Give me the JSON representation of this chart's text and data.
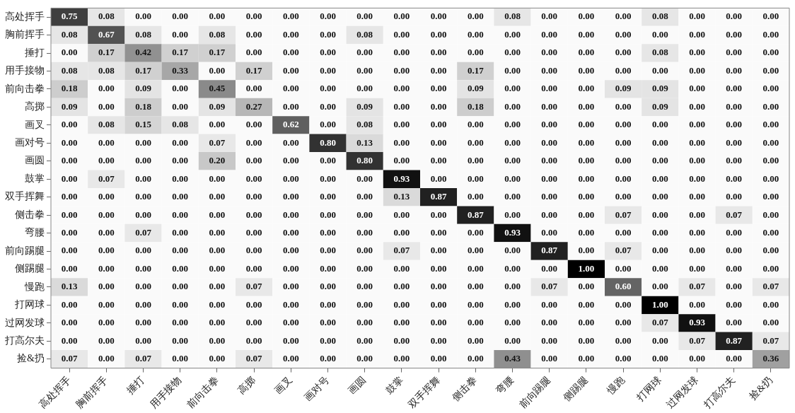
{
  "chart_data": {
    "type": "heatmap",
    "categories": [
      "高处挥手",
      "胸前挥手",
      "捶打",
      "用手接物",
      "前向击拳",
      "高掷",
      "画叉",
      "画对号",
      "画圆",
      "鼓掌",
      "双手挥舞",
      "侧击拳",
      "弯腰",
      "前向踢腿",
      "侧踢腿",
      "慢跑",
      "打网球",
      "过网发球",
      "打高尔夫",
      "捡&扔"
    ],
    "y_categories": [
      "高处挥手",
      "胸前挥手",
      "捶打",
      "用手接物",
      "前向击拳",
      "高掷",
      "画叉",
      "画对号",
      "画圆",
      "鼓掌",
      "双手挥舞",
      "侧击拳",
      "弯腰",
      "前向踢腿",
      "侧踢腿",
      "慢跑",
      "打网球",
      "过网发球",
      "打高尔夫",
      "捡&扔"
    ],
    "cells": [
      [
        0.75,
        0.08,
        0,
        0,
        0,
        0,
        0,
        0,
        0,
        0,
        0,
        0,
        0.08,
        0,
        0,
        0,
        0.08,
        0,
        0,
        0
      ],
      [
        0.08,
        0.67,
        0.08,
        0,
        0.08,
        0,
        0,
        0,
        0.08,
        0,
        0,
        0,
        0,
        0,
        0,
        0,
        0,
        0,
        0,
        0
      ],
      [
        0,
        0.17,
        0.42,
        0.17,
        0.17,
        0,
        0,
        0,
        0,
        0,
        0,
        0,
        0,
        0,
        0,
        0,
        0.08,
        0,
        0,
        0
      ],
      [
        0.08,
        0.08,
        0.17,
        0.33,
        0,
        0.17,
        0,
        0,
        0,
        0,
        0,
        0.17,
        0,
        0,
        0,
        0,
        0,
        0,
        0,
        0
      ],
      [
        0.18,
        0,
        0.09,
        0,
        0.45,
        0,
        0,
        0,
        0,
        0,
        0,
        0.09,
        0,
        0,
        0,
        0.09,
        0.09,
        0,
        0,
        0
      ],
      [
        0.09,
        0,
        0.18,
        0,
        0.09,
        0.27,
        0,
        0,
        0.09,
        0,
        0,
        0.18,
        0,
        0,
        0,
        0,
        0.09,
        0,
        0,
        0
      ],
      [
        0,
        0.08,
        0.15,
        0.08,
        0,
        0,
        0.62,
        0,
        0.08,
        0,
        0,
        0,
        0,
        0,
        0,
        0,
        0,
        0,
        0,
        0
      ],
      [
        0,
        0,
        0,
        0,
        0.07,
        0,
        0,
        0.8,
        0.13,
        0,
        0,
        0,
        0,
        0,
        0,
        0,
        0,
        0,
        0,
        0
      ],
      [
        0,
        0,
        0,
        0,
        0.2,
        0,
        0,
        0,
        0.8,
        0,
        0,
        0,
        0,
        0,
        0,
        0,
        0,
        0,
        0,
        0
      ],
      [
        0,
        0.07,
        0,
        0,
        0,
        0,
        0,
        0,
        0,
        0.93,
        0,
        0,
        0,
        0,
        0,
        0,
        0,
        0,
        0,
        0
      ],
      [
        0,
        0,
        0,
        0,
        0,
        0,
        0,
        0,
        0,
        0.13,
        0.87,
        0,
        0,
        0,
        0,
        0,
        0,
        0,
        0,
        0
      ],
      [
        0,
        0,
        0,
        0,
        0,
        0,
        0,
        0,
        0,
        0,
        0,
        0.87,
        0,
        0,
        0,
        0.07,
        0,
        0,
        0.07,
        0
      ],
      [
        0,
        0,
        0.07,
        0,
        0,
        0,
        0,
        0,
        0,
        0,
        0,
        0,
        0.93,
        0,
        0,
        0,
        0,
        0,
        0,
        0
      ],
      [
        0,
        0,
        0,
        0,
        0,
        0,
        0,
        0,
        0,
        0.07,
        0,
        0,
        0,
        0.87,
        0,
        0.07,
        0,
        0,
        0,
        0
      ],
      [
        0,
        0,
        0,
        0,
        0,
        0,
        0,
        0,
        0,
        0,
        0,
        0,
        0,
        0,
        1,
        0,
        0,
        0,
        0,
        0
      ],
      [
        0.13,
        0,
        0,
        0,
        0,
        0.07,
        0,
        0,
        0,
        0,
        0,
        0,
        0,
        0.07,
        0,
        0.6,
        0,
        0.07,
        0,
        0.07
      ],
      [
        0,
        0,
        0,
        0,
        0,
        0,
        0,
        0,
        0,
        0,
        0,
        0,
        0,
        0,
        0,
        0,
        1,
        0,
        0,
        0
      ],
      [
        0,
        0,
        0,
        0,
        0,
        0,
        0,
        0,
        0,
        0,
        0,
        0,
        0,
        0,
        0,
        0,
        0.07,
        0.93,
        0,
        0
      ],
      [
        0,
        0,
        0,
        0,
        0,
        0,
        0,
        0,
        0,
        0,
        0,
        0,
        0,
        0,
        0,
        0,
        0,
        0.07,
        0.87,
        0.07
      ],
      [
        0.07,
        0,
        0.07,
        0,
        0,
        0.07,
        0,
        0,
        0,
        0,
        0,
        0,
        0.43,
        0,
        0,
        0,
        0,
        0,
        0,
        0.36
      ]
    ],
    "cell_labels": [
      [
        "0.75",
        "0.08",
        "0.00",
        "0.00",
        "0.00",
        "0.00",
        "0.00",
        "0.00",
        "0.00",
        "0.00",
        "0.00",
        "0.00",
        "0.08",
        "0.00",
        "0.00",
        "0.00",
        "0.08",
        "0.00",
        "0.00",
        "0.00"
      ],
      [
        "0.08",
        "0.67",
        "0.08",
        "0.00",
        "0.08",
        "0.00",
        "0.00",
        "0.00",
        "0.08",
        "0.00",
        "0.00",
        "0.00",
        "0.00",
        "0.00",
        "0.00",
        "0.00",
        "0.00",
        "0.00",
        "0.00",
        "0.00"
      ],
      [
        "0.00",
        "0.17",
        "0.42",
        "0.17",
        "0.17",
        "0.00",
        "0.00",
        "0.00",
        "0.00",
        "0.00",
        "0.00",
        "0.00",
        "0.00",
        "0.00",
        "0.00",
        "0.00",
        "0.08",
        "0.00",
        "0.00",
        "0.00"
      ],
      [
        "0.08",
        "0.08",
        "0.17",
        "0.33",
        "0.00",
        "0.17",
        "0.00",
        "0.00",
        "0.00",
        "0.00",
        "0.00",
        "0.17",
        "0.00",
        "0.00",
        "0.00",
        "0.00",
        "0.00",
        "0.00",
        "0.00",
        "0.00"
      ],
      [
        "0.18",
        "0.00",
        "0.09",
        "0.00",
        "0.45",
        "0.00",
        "0.00",
        "0.00",
        "0.00",
        "0.00",
        "0.00",
        "0.09",
        "0.00",
        "0.00",
        "0.00",
        "0.09",
        "0.09",
        "0.00",
        "0.00",
        "0.00"
      ],
      [
        "0.09",
        "0.00",
        "0.18",
        "0.00",
        "0.09",
        "0.27",
        "0.00",
        "0.00",
        "0.09",
        "0.00",
        "0.00",
        "0.18",
        "0.00",
        "0.00",
        "0.00",
        "0.00",
        "0.09",
        "0.00",
        "0.00",
        "0.00"
      ],
      [
        "0.00",
        "0.08",
        "0.15",
        "0.08",
        "0.00",
        "0.00",
        "0.62",
        "0.00",
        "0.08",
        "0.00",
        "0.00",
        "0.00",
        "0.00",
        "0.00",
        "0.00",
        "0.00",
        "0.00",
        "0.00",
        "0.00",
        "0.00"
      ],
      [
        "0.00",
        "0.00",
        "0.00",
        "0.00",
        "0.07",
        "0.00",
        "0.00",
        "0.80",
        "0.13",
        "0.00",
        "0.00",
        "0.00",
        "0.00",
        "0.00",
        "0.00",
        "0.00",
        "0.00",
        "0.00",
        "0.00",
        "0.00"
      ],
      [
        "0.00",
        "0.00",
        "0.00",
        "0.00",
        "0.20",
        "0.00",
        "0.00",
        "0.00",
        "0.80",
        "0.00",
        "0.00",
        "0.00",
        "0.00",
        "0.00",
        "0.00",
        "0.00",
        "0.00",
        "0.00",
        "0.00",
        "0.00"
      ],
      [
        "0.00",
        "0.07",
        "0.00",
        "0.00",
        "0.00",
        "0.00",
        "0.00",
        "0.00",
        "0.00",
        "0.93",
        "0.00",
        "0.00",
        "0.00",
        "0.00",
        "0.00",
        "0.00",
        "0.00",
        "0.00",
        "0.00",
        "0.00"
      ],
      [
        "0.00",
        "0.00",
        "0.00",
        "0.00",
        "0.00",
        "0.00",
        "0.00",
        "0.00",
        "0.00",
        "0.13",
        "0.87",
        "0.00",
        "0.00",
        "0.00",
        "0.00",
        "0.00",
        "0.00",
        "0.00",
        "0.00",
        "0.00"
      ],
      [
        "0.00",
        "0.00",
        "0.00",
        "0.00",
        "0.00",
        "0.00",
        "0.00",
        "0.00",
        "0.00",
        "0.00",
        "0.00",
        "0.87",
        "0.00",
        "0.00",
        "0.00",
        "0.07",
        "0.00",
        "0.00",
        "0.07",
        "0.00"
      ],
      [
        "0.00",
        "0.00",
        "0.07",
        "0.00",
        "0.00",
        "0.00",
        "0.00",
        "0.00",
        "0.00",
        "0.00",
        "0.00",
        "0.00",
        "0.93",
        "0.00",
        "0.00",
        "0.00",
        "0.00",
        "0.00",
        "0.00",
        "0.00"
      ],
      [
        "0.00",
        "0.00",
        "0.00",
        "0.00",
        "0.00",
        "0.00",
        "0.00",
        "0.00",
        "0.00",
        "0.07",
        "0.00",
        "0.00",
        "0.00",
        "0.87",
        "0.00",
        "0.07",
        "0.00",
        "0.00",
        "0.00",
        "0.00"
      ],
      [
        "0.00",
        "0.00",
        "0.00",
        "0.00",
        "0.00",
        "0.00",
        "0.00",
        "0.00",
        "0.00",
        "0.00",
        "0.00",
        "0.00",
        "0.00",
        "0.00",
        "1.00",
        "0.00",
        "0.00",
        "0.00",
        "0.00",
        "0.00"
      ],
      [
        "0.13",
        "0.00",
        "0.00",
        "0.00",
        "0.00",
        "0.07",
        "0.00",
        "0.00",
        "0.00",
        "0.00",
        "0.00",
        "0.00",
        "0.00",
        "0.07",
        "0.00",
        "0.60",
        "0.00",
        "0.07",
        "0.00",
        "0.07"
      ],
      [
        "0.00",
        "0.00",
        "0.00",
        "0.00",
        "0.00",
        "0.00",
        "0.00",
        "0.00",
        "0.00",
        "0.00",
        "0.00",
        "0.00",
        "0.00",
        "0.00",
        "0.00",
        "0.00",
        "1.00",
        "0.00",
        "0.00",
        "0.00"
      ],
      [
        "0.00",
        "0.00",
        "0.00",
        "0.00",
        "0.00",
        "0.00",
        "0.00",
        "0.00",
        "0.00",
        "0.00",
        "0.00",
        "0.00",
        "0.00",
        "0.00",
        "0.00",
        "0.00",
        "0.07",
        "0.93",
        "0.00",
        "0.00"
      ],
      [
        "0.00",
        "0.00",
        "0.00",
        "0.00",
        "0.00",
        "0.00",
        "0.00",
        "0.00",
        "0.00",
        "0.00",
        "0.00",
        "0.00",
        "0.00",
        "0.00",
        "0.00",
        "0.00",
        "0.00",
        "0.07",
        "0.87",
        "0.07"
      ],
      [
        "0.07",
        "0.00",
        "0.07",
        "0.00",
        "0.00",
        "0.07",
        "0.00",
        "0.00",
        "0.00",
        "0.00",
        "0.00",
        "0.00",
        "0.43",
        "0.00",
        "0.00",
        "0.00",
        "0.00",
        "0.00",
        "0.00",
        "0.36"
      ]
    ],
    "data_labels": true
  }
}
